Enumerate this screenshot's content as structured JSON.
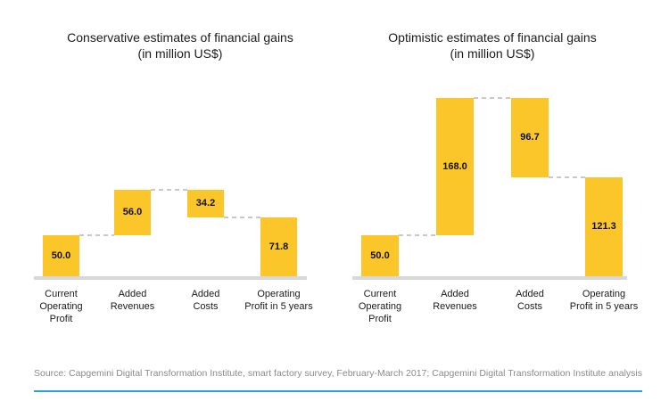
{
  "page": {
    "background": "#ffffff",
    "bar_color": "#fac629",
    "axis_color": "#d8d8d8",
    "connector_color": "#c9c9c9",
    "accent_color": "#29a0d6"
  },
  "chart_data": [
    {
      "type": "bar",
      "subtype": "waterfall",
      "title": "Conservative estimates of financial gains",
      "subtitle": "(in million US$)",
      "categories": [
        "Current Operating Profit",
        "Added Revenues",
        "Added Costs",
        "Operating Profit in 5 years"
      ],
      "category_lines": [
        [
          "Current",
          "Operating",
          "Profit"
        ],
        [
          "Added",
          "Revenues"
        ],
        [
          "Added",
          "Costs"
        ],
        [
          "Operating",
          "Profit in 5 years"
        ]
      ],
      "bars": [
        {
          "label": "50.0",
          "value": 50.0,
          "kind": "absolute"
        },
        {
          "label": "56.0",
          "value": 56.0,
          "kind": "increase"
        },
        {
          "label": "34.2",
          "value": 34.2,
          "kind": "decrease"
        },
        {
          "label": "71.8",
          "value": 71.8,
          "kind": "total"
        }
      ],
      "bar_color": "#fac629",
      "connector_style": "dashed",
      "value_axis_hidden": true,
      "ylim": [
        0,
        218
      ],
      "legend": "none",
      "grid": false
    },
    {
      "type": "bar",
      "subtype": "waterfall",
      "title": "Optimistic estimates of financial gains",
      "subtitle": "(in million US$)",
      "categories": [
        "Current Operating Profit",
        "Added Revenues",
        "Added Costs",
        "Operating Profit in 5 years"
      ],
      "category_lines": [
        [
          "Current",
          "Operating",
          "Profit"
        ],
        [
          "Added",
          "Revenues"
        ],
        [
          "Added",
          "Costs"
        ],
        [
          "Operating",
          "Profit in 5 years"
        ]
      ],
      "bars": [
        {
          "label": "50.0",
          "value": 50.0,
          "kind": "absolute"
        },
        {
          "label": "168.0",
          "value": 168.0,
          "kind": "increase"
        },
        {
          "label": "96.7",
          "value": 96.7,
          "kind": "decrease"
        },
        {
          "label": "121.3",
          "value": 121.3,
          "kind": "total"
        }
      ],
      "bar_color": "#fac629",
      "connector_style": "dashed",
      "value_axis_hidden": true,
      "ylim": [
        0,
        218
      ],
      "legend": "none",
      "grid": false
    }
  ],
  "footer": {
    "source": "Source: Capgemini Digital Transformation Institute, smart factory survey, February-March 2017; Capgemini Digital Transformation Institute analysis"
  }
}
